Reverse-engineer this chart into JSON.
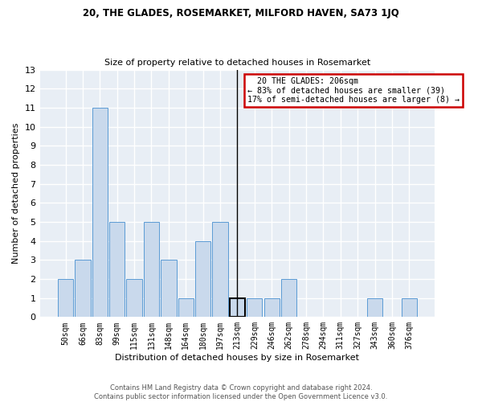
{
  "title1": "20, THE GLADES, ROSEMARKET, MILFORD HAVEN, SA73 1JQ",
  "title2": "Size of property relative to detached houses in Rosemarket",
  "xlabel": "Distribution of detached houses by size in Rosemarket",
  "ylabel": "Number of detached properties",
  "categories": [
    "50sqm",
    "66sqm",
    "83sqm",
    "99sqm",
    "115sqm",
    "131sqm",
    "148sqm",
    "164sqm",
    "180sqm",
    "197sqm",
    "213sqm",
    "229sqm",
    "246sqm",
    "262sqm",
    "278sqm",
    "294sqm",
    "311sqm",
    "327sqm",
    "343sqm",
    "360sqm",
    "376sqm"
  ],
  "values": [
    2,
    3,
    11,
    5,
    2,
    5,
    3,
    1,
    4,
    5,
    1,
    1,
    1,
    2,
    0,
    0,
    0,
    0,
    1,
    0,
    1
  ],
  "bar_color": "#c9d9ec",
  "bar_edge_color": "#5b9bd5",
  "highlight_bar_index": 10,
  "highlight_bar_edge_color": "#000000",
  "annotation_text_line1": "  20 THE GLADES: 206sqm  ",
  "annotation_text_line2": "← 83% of detached houses are smaller (39)",
  "annotation_text_line3": "17% of semi-detached houses are larger (8) →",
  "annotation_box_facecolor": "#ffffff",
  "annotation_box_edgecolor": "#cc0000",
  "background_color": "#e8eef5",
  "grid_color": "#ffffff",
  "ylim": [
    0,
    13
  ],
  "yticks": [
    0,
    1,
    2,
    3,
    4,
    5,
    6,
    7,
    8,
    9,
    10,
    11,
    12,
    13
  ],
  "footer_line1": "Contains HM Land Registry data © Crown copyright and database right 2024.",
  "footer_line2": "Contains public sector information licensed under the Open Government Licence v3.0."
}
